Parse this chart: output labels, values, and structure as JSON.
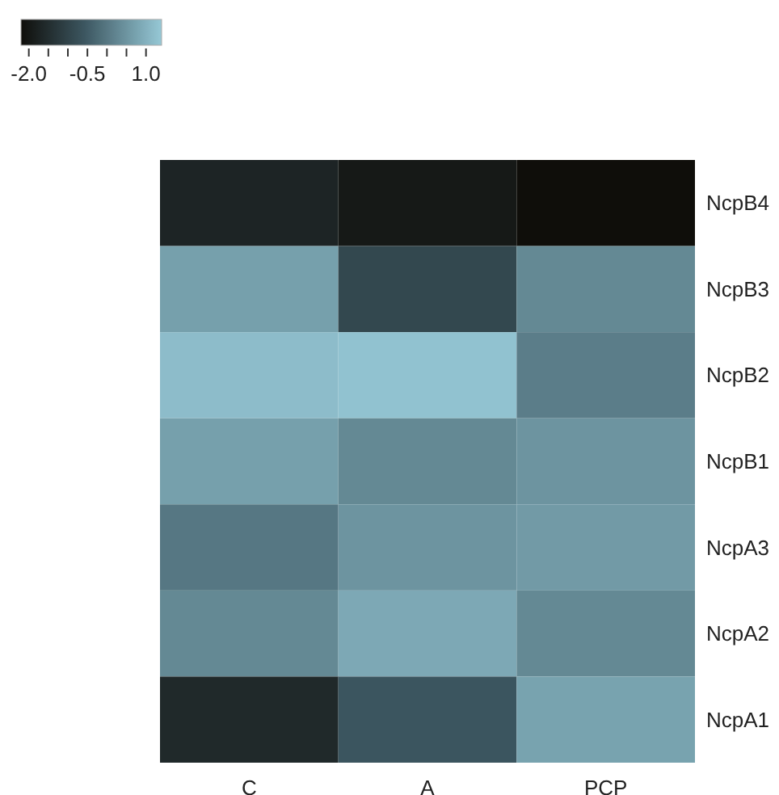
{
  "chart_data": {
    "type": "heatmap",
    "categories": [
      "C",
      "A",
      "PCP"
    ],
    "y_categories": [
      "NcpB4",
      "NcpB3",
      "NcpB2",
      "NcpB1",
      "NcpA3",
      "NcpA2",
      "NcpA1"
    ],
    "cells": [
      [
        -1.7,
        -1.95,
        -2.2
      ],
      [
        0.7,
        -0.9,
        0.3
      ],
      [
        1.2,
        1.3,
        0.1
      ],
      [
        0.7,
        0.3,
        0.5
      ],
      [
        0.0,
        0.5,
        0.6
      ],
      [
        0.3,
        0.85,
        0.3
      ],
      [
        -1.6,
        -0.6,
        0.75
      ]
    ],
    "clim": [
      -2.2,
      1.4
    ],
    "cticks": [
      {
        "value": -2.0,
        "label": "-2.0"
      },
      {
        "value": -1.5,
        "label": null
      },
      {
        "value": -1.0,
        "label": null
      },
      {
        "value": -0.5,
        "label": "-0.5"
      },
      {
        "value": 0.0,
        "label": null
      },
      {
        "value": 0.5,
        "label": null
      },
      {
        "value": 1.0,
        "label": "1.0"
      }
    ]
  }
}
